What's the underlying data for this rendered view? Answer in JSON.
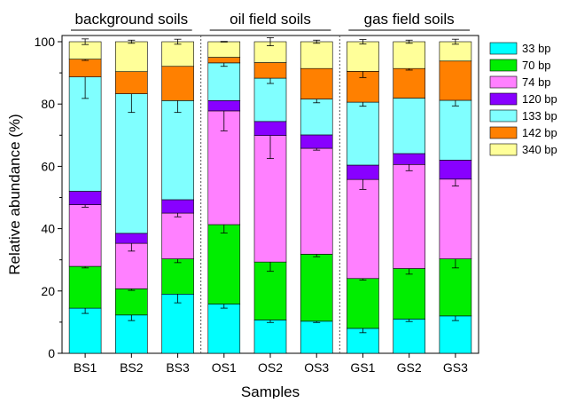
{
  "chart_data": {
    "type": "bar",
    "stacked": true,
    "xlabel": "Samples",
    "ylabel": "Relative abundance (%)",
    "ylim": [
      0,
      100
    ],
    "yticks": [
      0,
      20,
      40,
      60,
      80,
      100
    ],
    "grid": false,
    "legend_position": "right",
    "categories": [
      "BS1",
      "BS2",
      "BS3",
      "OS1",
      "OS2",
      "OS3",
      "GS1",
      "GS2",
      "GS3"
    ],
    "groups": [
      {
        "label": "background soils",
        "categories": [
          "BS1",
          "BS2",
          "BS3"
        ]
      },
      {
        "label": "oil field soils",
        "categories": [
          "OS1",
          "OS2",
          "OS3"
        ]
      },
      {
        "label": "gas field soils",
        "categories": [
          "GS1",
          "GS2",
          "GS3"
        ]
      }
    ],
    "series": [
      {
        "name": "33 bp",
        "color": "#00FFFF",
        "values": [
          14.5,
          12.3,
          19.0,
          15.8,
          10.7,
          10.3,
          8.0,
          11.0,
          12.0
        ],
        "errors": [
          1.7,
          1.8,
          2.8,
          1.3,
          0.8,
          0.4,
          1.4,
          0.8,
          1.5
        ]
      },
      {
        "name": "70 bp",
        "color": "#00EE00",
        "values": [
          13.4,
          8.4,
          11.3,
          25.5,
          18.6,
          21.5,
          16.0,
          16.2,
          18.3
        ],
        "errors": [
          0.5,
          0.5,
          1.2,
          2.7,
          3.0,
          0.8,
          0.5,
          1.8,
          2.9
        ]
      },
      {
        "name": "74 bp",
        "color": "#FF80FF",
        "values": [
          19.8,
          14.6,
          14.7,
          36.5,
          40.6,
          34.0,
          31.8,
          33.4,
          25.6
        ],
        "errors": [
          0.8,
          2.5,
          1.2,
          6.4,
          7.4,
          0.6,
          3.2,
          2.0,
          2.2
        ]
      },
      {
        "name": "120 bp",
        "color": "#8800FF",
        "values": [
          4.3,
          3.2,
          4.3,
          3.3,
          4.5,
          4.3,
          4.6,
          3.5,
          6.1
        ],
        "errors": [
          0,
          0,
          0,
          0,
          0,
          0,
          0,
          0,
          0
        ]
      },
      {
        "name": "133 bp",
        "color": "#80FFFF",
        "values": [
          36.7,
          44.8,
          31.8,
          12.1,
          13.9,
          11.5,
          20.2,
          17.8,
          19.2
        ],
        "errors": [
          6.9,
          6.0,
          3.8,
          1.1,
          1.7,
          1.2,
          1.3,
          0,
          1.8
        ]
      },
      {
        "name": "142 bp",
        "color": "#FF8000",
        "values": [
          5.7,
          7.1,
          11.0,
          1.8,
          5.0,
          9.8,
          9.9,
          9.5,
          12.6
        ],
        "errors": [
          0.4,
          0,
          0,
          0,
          0,
          0,
          2.0,
          0.5,
          0
        ]
      },
      {
        "name": "340 bp",
        "color": "#FFFF99",
        "values": [
          5.6,
          9.6,
          7.9,
          5.0,
          6.7,
          8.6,
          9.5,
          8.6,
          6.2
        ],
        "errors": [
          0.9,
          0.5,
          0.8,
          0.1,
          1.3,
          0.5,
          0.7,
          0.5,
          0.8
        ]
      }
    ]
  }
}
